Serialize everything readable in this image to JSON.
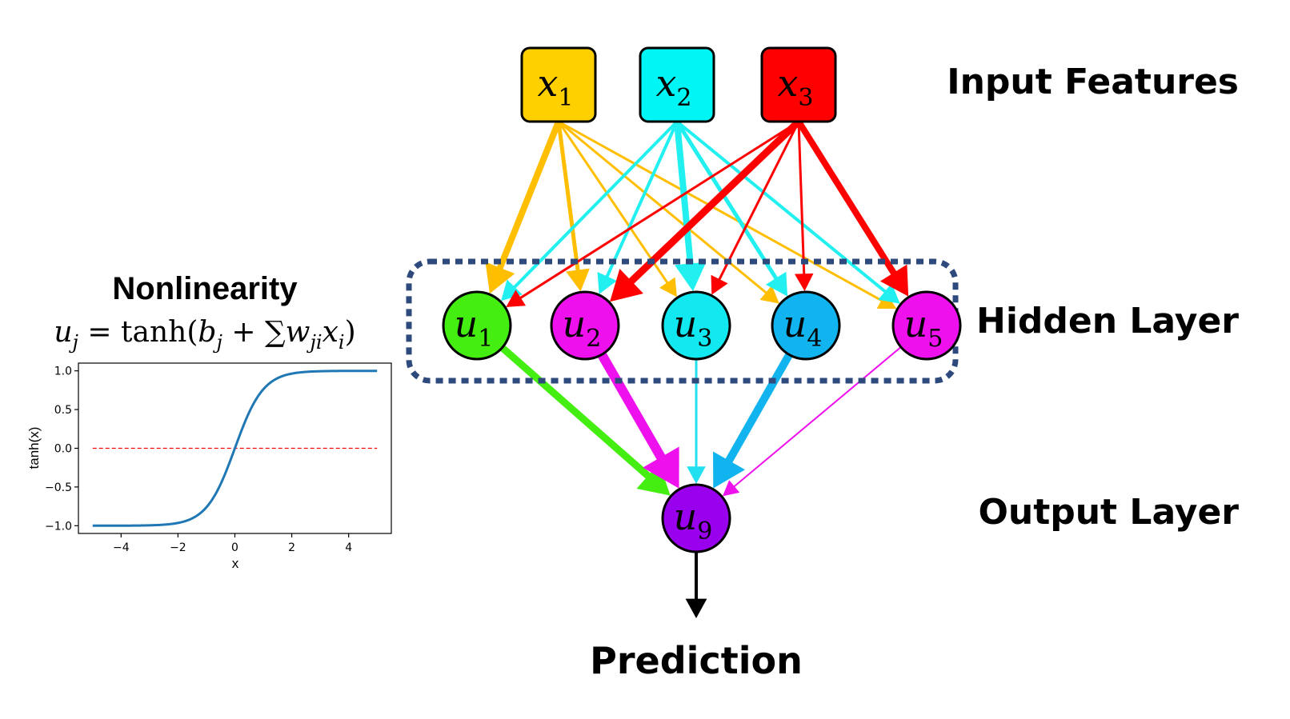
{
  "layer_labels": {
    "input": "Input Features",
    "hidden": "Hidden Layer",
    "output": "Output Layer",
    "prediction": "Prediction"
  },
  "nonlinearity": {
    "title": "Nonlinearity",
    "formula": {
      "lhs_var": "u",
      "lhs_sub": "j",
      "eq": " = ",
      "func": "tanh(",
      "b": "b",
      "b_sub": "j",
      "plus": " + ∑",
      "w": "w",
      "w_sub": "ji",
      "x": "x",
      "x_sub": "i",
      "close": ")"
    }
  },
  "input_nodes": [
    {
      "var": "x",
      "sub": "1",
      "color": "#FFD000"
    },
    {
      "var": "x",
      "sub": "2",
      "color": "#00F5F5"
    },
    {
      "var": "x",
      "sub": "3",
      "color": "#FF0000"
    }
  ],
  "hidden_nodes": [
    {
      "var": "u",
      "sub": "1",
      "color": "#44EE11"
    },
    {
      "var": "u",
      "sub": "2",
      "color": "#EE11EE"
    },
    {
      "var": "u",
      "sub": "3",
      "color": "#11E8F0"
    },
    {
      "var": "u",
      "sub": "4",
      "color": "#11B4EE"
    },
    {
      "var": "u",
      "sub": "5",
      "color": "#EE11EE"
    }
  ],
  "output_node": {
    "var": "u",
    "sub": "9",
    "color": "#9900EE"
  },
  "edge_colors": {
    "x1": "#FFBE00",
    "x2": "#22F0F0",
    "x3": "#FF0000",
    "u1": "#44EE11",
    "u2": "#EE11EE",
    "u3": "#22E0F0",
    "u4": "#11B4EE",
    "u5": "#EE11EE",
    "prediction": "#000000",
    "hidden_box": "#2E4A7D"
  },
  "chart_data": {
    "type": "line",
    "title": "",
    "xlabel": "x",
    "ylabel": "tanh(x)",
    "xlim": [
      -5.5,
      5.5
    ],
    "ylim": [
      -1.1,
      1.1
    ],
    "xticks": [
      "−4",
      "−2",
      "0",
      "2",
      "4"
    ],
    "xtick_values": [
      -4,
      -2,
      0,
      2,
      4
    ],
    "yticks": [
      "−1.0",
      "−0.5",
      "0.0",
      "0.5",
      "1.0"
    ],
    "ytick_values": [
      -1.0,
      -0.5,
      0.0,
      0.5,
      1.0
    ],
    "series": [
      {
        "function": "tanh",
        "x_range": [
          -5,
          5
        ],
        "color": "#1F77B4"
      }
    ],
    "reference_line": {
      "y": 0,
      "x_range": [
        -5,
        5
      ],
      "style": "dashed",
      "color": "#FF0000"
    },
    "grid": false
  }
}
